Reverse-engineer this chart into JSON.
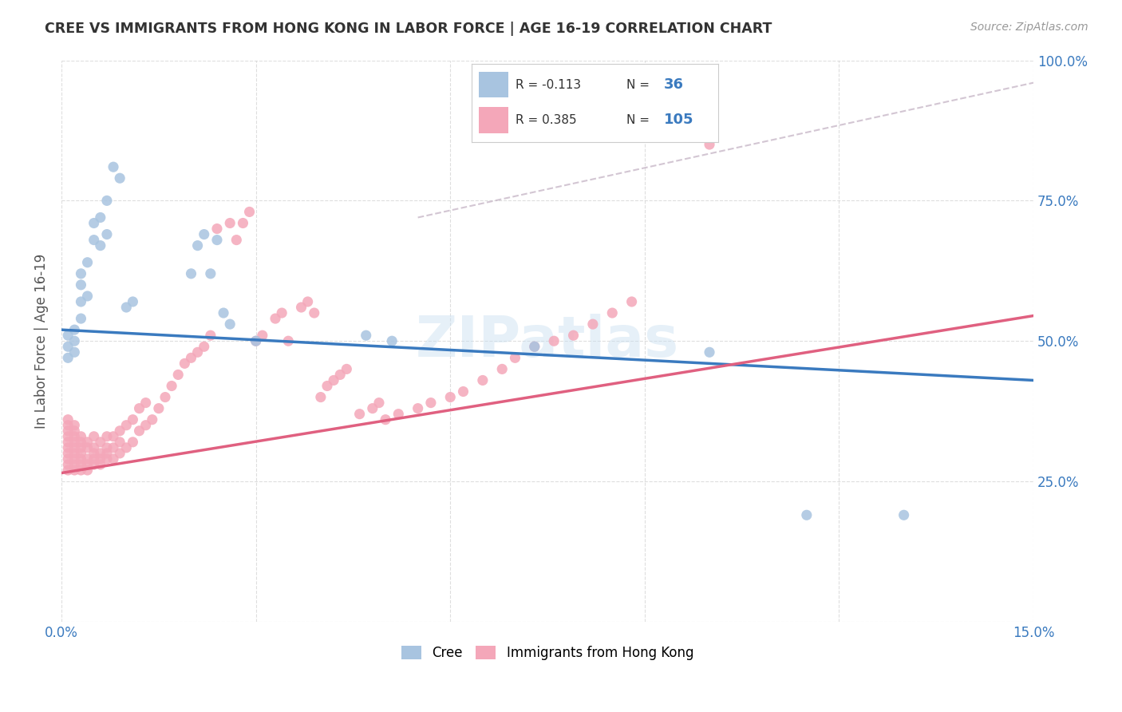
{
  "title": "CREE VS IMMIGRANTS FROM HONG KONG IN LABOR FORCE | AGE 16-19 CORRELATION CHART",
  "source": "Source: ZipAtlas.com",
  "ylabel": "In Labor Force | Age 16-19",
  "xlim": [
    0.0,
    0.15
  ],
  "ylim": [
    0.0,
    1.0
  ],
  "cree_color": "#a8c4e0",
  "hk_color": "#f4a7b9",
  "cree_line_color": "#3a7abf",
  "hk_line_color": "#e06080",
  "trend_dash_color": "#c8b8c8",
  "background_color": "#ffffff",
  "grid_color": "#d0d0d0",
  "cree_line_x0": 0.0,
  "cree_line_y0": 0.52,
  "cree_line_x1": 0.15,
  "cree_line_y1": 0.43,
  "hk_line_x0": 0.0,
  "hk_line_y0": 0.265,
  "hk_line_x1": 0.15,
  "hk_line_y1": 0.545,
  "dash_line_x0": 0.055,
  "dash_line_y0": 0.72,
  "dash_line_x1": 0.15,
  "dash_line_y1": 0.96,
  "cree_scatter_x": [
    0.001,
    0.001,
    0.001,
    0.002,
    0.002,
    0.002,
    0.003,
    0.003,
    0.003,
    0.003,
    0.004,
    0.004,
    0.005,
    0.005,
    0.006,
    0.006,
    0.007,
    0.007,
    0.008,
    0.009,
    0.01,
    0.011,
    0.02,
    0.021,
    0.022,
    0.023,
    0.024,
    0.025,
    0.026,
    0.03,
    0.047,
    0.051,
    0.073,
    0.1,
    0.115,
    0.13
  ],
  "cree_scatter_y": [
    0.47,
    0.49,
    0.51,
    0.48,
    0.5,
    0.52,
    0.54,
    0.57,
    0.6,
    0.62,
    0.58,
    0.64,
    0.68,
    0.71,
    0.67,
    0.72,
    0.69,
    0.75,
    0.81,
    0.79,
    0.56,
    0.57,
    0.62,
    0.67,
    0.69,
    0.62,
    0.68,
    0.55,
    0.53,
    0.5,
    0.51,
    0.5,
    0.49,
    0.48,
    0.19,
    0.19
  ],
  "hk_scatter_x": [
    0.001,
    0.001,
    0.001,
    0.001,
    0.001,
    0.001,
    0.001,
    0.001,
    0.001,
    0.001,
    0.002,
    0.002,
    0.002,
    0.002,
    0.002,
    0.002,
    0.002,
    0.002,
    0.002,
    0.003,
    0.003,
    0.003,
    0.003,
    0.003,
    0.003,
    0.003,
    0.004,
    0.004,
    0.004,
    0.004,
    0.004,
    0.005,
    0.005,
    0.005,
    0.005,
    0.005,
    0.006,
    0.006,
    0.006,
    0.006,
    0.007,
    0.007,
    0.007,
    0.007,
    0.008,
    0.008,
    0.008,
    0.009,
    0.009,
    0.009,
    0.01,
    0.01,
    0.011,
    0.011,
    0.012,
    0.012,
    0.013,
    0.013,
    0.014,
    0.015,
    0.016,
    0.017,
    0.018,
    0.019,
    0.02,
    0.021,
    0.022,
    0.023,
    0.024,
    0.026,
    0.027,
    0.028,
    0.029,
    0.03,
    0.031,
    0.033,
    0.034,
    0.035,
    0.037,
    0.038,
    0.039,
    0.04,
    0.041,
    0.042,
    0.043,
    0.044,
    0.046,
    0.048,
    0.049,
    0.05,
    0.052,
    0.055,
    0.057,
    0.06,
    0.062,
    0.065,
    0.068,
    0.07,
    0.073,
    0.076,
    0.079,
    0.082,
    0.085,
    0.088,
    0.1
  ],
  "hk_scatter_y": [
    0.27,
    0.28,
    0.29,
    0.3,
    0.31,
    0.32,
    0.33,
    0.34,
    0.35,
    0.36,
    0.27,
    0.28,
    0.29,
    0.3,
    0.31,
    0.32,
    0.33,
    0.34,
    0.35,
    0.27,
    0.28,
    0.29,
    0.3,
    0.31,
    0.32,
    0.33,
    0.27,
    0.28,
    0.29,
    0.31,
    0.32,
    0.28,
    0.29,
    0.3,
    0.31,
    0.33,
    0.28,
    0.29,
    0.3,
    0.32,
    0.29,
    0.3,
    0.31,
    0.33,
    0.29,
    0.31,
    0.33,
    0.3,
    0.32,
    0.34,
    0.31,
    0.35,
    0.32,
    0.36,
    0.34,
    0.38,
    0.35,
    0.39,
    0.36,
    0.38,
    0.4,
    0.42,
    0.44,
    0.46,
    0.47,
    0.48,
    0.49,
    0.51,
    0.7,
    0.71,
    0.68,
    0.71,
    0.73,
    0.5,
    0.51,
    0.54,
    0.55,
    0.5,
    0.56,
    0.57,
    0.55,
    0.4,
    0.42,
    0.43,
    0.44,
    0.45,
    0.37,
    0.38,
    0.39,
    0.36,
    0.37,
    0.38,
    0.39,
    0.4,
    0.41,
    0.43,
    0.45,
    0.47,
    0.49,
    0.5,
    0.51,
    0.53,
    0.55,
    0.57,
    0.85
  ]
}
